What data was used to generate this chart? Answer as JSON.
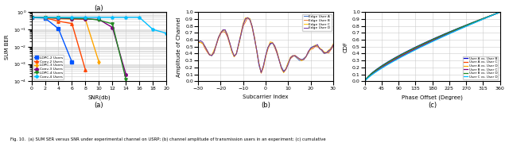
{
  "fig_width": 6.4,
  "fig_height": 1.8,
  "caption": "Fig. 10.  (a) SUM SER versus SNR under experimental channel on USRP; (b) channel amplitude of transmission users in an experiment; (c) cumulative",
  "plot_a": {
    "title": "(a)",
    "xlabel": "SNR(db)",
    "ylabel": "SUM BER",
    "xlim": [
      0,
      20
    ],
    "grid": true,
    "series": [
      {
        "label": "LDPC-2 Users",
        "color": "#0055FF",
        "marker": "s",
        "snr": [
          0,
          2,
          4,
          6
        ],
        "ber": [
          0.48,
          0.46,
          0.11,
          0.0013
        ]
      },
      {
        "label": "Conv-2 Users",
        "color": "#FF4500",
        "marker": "^",
        "snr": [
          0,
          2,
          4,
          6,
          8
        ],
        "ber": [
          0.49,
          0.47,
          0.3,
          0.22,
          0.00045
        ]
      },
      {
        "label": "LDPC-3 Users",
        "color": "#FFA500",
        "marker": "d",
        "snr": [
          0,
          2,
          4,
          6,
          8,
          10
        ],
        "ber": [
          0.49,
          0.48,
          0.42,
          0.4,
          0.38,
          0.0013
        ]
      },
      {
        "label": "Conv-3 Users",
        "color": "#800080",
        "marker": "o",
        "snr": [
          0,
          2,
          4,
          6,
          8,
          10,
          12,
          14
        ],
        "ber": [
          0.49,
          0.48,
          0.45,
          0.42,
          0.4,
          0.38,
          0.13,
          0.00025
        ]
      },
      {
        "label": "LDPC-4 Users",
        "color": "#228B22",
        "marker": "v",
        "snr": [
          0,
          2,
          4,
          6,
          8,
          10,
          12,
          14
        ],
        "ber": [
          0.49,
          0.49,
          0.47,
          0.45,
          0.43,
          0.35,
          0.21,
          0.00013
        ]
      },
      {
        "label": "Conv-4 Users",
        "color": "#00BFFF",
        "marker": "p",
        "snr": [
          0,
          2,
          4,
          6,
          8,
          10,
          12,
          14,
          16,
          18,
          20
        ],
        "ber": [
          0.5,
          0.5,
          0.5,
          0.5,
          0.5,
          0.5,
          0.5,
          0.5,
          0.5,
          0.1,
          0.06
        ]
      }
    ]
  },
  "plot_b": {
    "title": "(b)",
    "xlabel": "Subcarrier Index",
    "ylabel": "Amplitude of Channel",
    "xlim": [
      -30,
      30
    ],
    "ylim": [
      0,
      1
    ],
    "yticks": [
      0,
      0.1,
      0.2,
      0.3,
      0.4,
      0.5,
      0.6,
      0.7,
      0.8,
      0.9,
      1.0
    ],
    "xticks": [
      -30,
      -20,
      -10,
      0,
      10,
      20,
      30
    ],
    "grid": true,
    "colors": [
      "#4472C4",
      "#ED7D31",
      "#FFC000",
      "#7030A0"
    ],
    "labels": [
      "Edge User A",
      "Edge User B",
      "Edge User C",
      "Edge User D"
    ]
  },
  "plot_c": {
    "title": "(c)",
    "xlabel": "Phase Offset (Degree)",
    "ylabel": "CDF",
    "xlim": [
      0,
      360
    ],
    "ylim": [
      0,
      1
    ],
    "xticks": [
      0,
      45,
      90,
      135,
      180,
      225,
      270,
      315,
      360
    ],
    "yticks": [
      0,
      0.1,
      0.2,
      0.3,
      0.4,
      0.5,
      0.6,
      0.7,
      0.8,
      0.9,
      1.0
    ],
    "grid": true,
    "colors": [
      "#0000CD",
      "#FF4500",
      "#FFA500",
      "#800080",
      "#228B22",
      "#00BFFF"
    ],
    "labels": [
      "User A vs. User B",
      "User A vs. User C",
      "User A vs. User D",
      "User B vs. User C",
      "User B vs. User D",
      "User C vs. User D"
    ],
    "exponents": [
      0.72,
      0.78,
      0.75,
      0.77,
      0.73,
      0.8
    ]
  }
}
